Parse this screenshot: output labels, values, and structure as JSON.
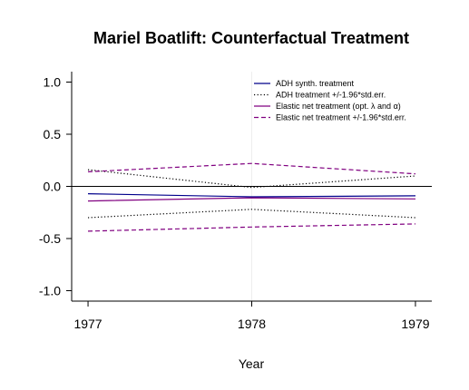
{
  "chart_data": {
    "type": "line",
    "title": "Mariel Boatlift: Counterfactual Treatment",
    "xlabel": "Year",
    "ylabel": "",
    "x": [
      1977,
      1978,
      1979
    ],
    "xlim": [
      1976.9,
      1979.1
    ],
    "ylim": [
      -1.1,
      1.1
    ],
    "xticks": [
      1977,
      1978,
      1979
    ],
    "xtick_labels": [
      "1977",
      "1978",
      "1979"
    ],
    "yticks": [
      -1.0,
      -0.5,
      0.0,
      0.5,
      1.0
    ],
    "ytick_labels": [
      "-1.0",
      "-0.5",
      "0.0",
      "0.5",
      "1.0"
    ],
    "reference_line_y": 0,
    "legend_position": "top-right",
    "series": [
      {
        "name": "ADH synth. treatment",
        "values": [
          -0.07,
          -0.1,
          -0.09
        ],
        "color": "#00008b",
        "style": "solid"
      },
      {
        "name": "ADH treatment +/-1.96*std.err.",
        "values": [
          0.16,
          -0.01,
          0.1
        ],
        "color": "#000000",
        "style": "dotted"
      },
      {
        "name": "ADH treatment +/-1.96*std.err.",
        "values": [
          -0.3,
          -0.22,
          -0.3
        ],
        "color": "#000000",
        "style": "dotted",
        "legend": false
      },
      {
        "name": "Elastic net treatment (opt. λ and α)",
        "values": [
          -0.14,
          -0.11,
          -0.12
        ],
        "color": "#800080",
        "style": "solid"
      },
      {
        "name": "Elastic net treatment +/-1.96*std.err.",
        "values": [
          0.14,
          0.22,
          0.12
        ],
        "color": "#800080",
        "style": "dashed"
      },
      {
        "name": "Elastic net treatment +/-1.96*std.err.",
        "values": [
          -0.43,
          -0.39,
          -0.36
        ],
        "color": "#800080",
        "style": "dashed",
        "legend": false
      }
    ]
  }
}
